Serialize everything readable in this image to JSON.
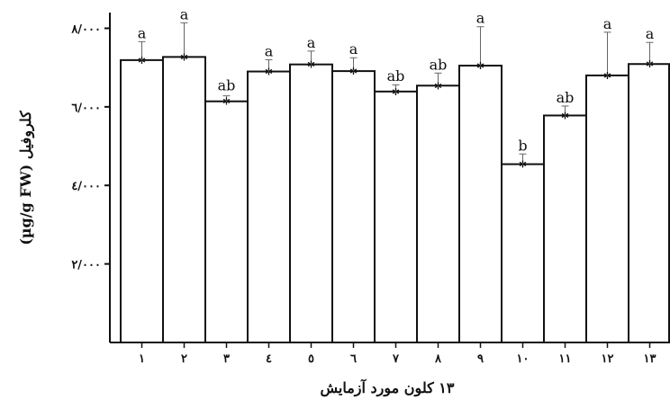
{
  "chart_data": {
    "type": "bar",
    "xlabel": "۱۳ کلون مورد آزمایش",
    "ylabel": "کلروفیل (µg/g FW)",
    "categories": [
      "۱",
      "۲",
      "۳",
      "٤",
      "٥",
      "٦",
      "۷",
      "۸",
      "۹",
      "۱۰",
      "۱۱",
      "۱۲",
      "۱۳"
    ],
    "values": [
      7190,
      7270,
      6140,
      6900,
      7080,
      6910,
      6390,
      6540,
      7050,
      4540,
      5780,
      6800,
      7090
    ],
    "error_upper": [
      7660,
      8140,
      6280,
      7200,
      7420,
      7250,
      6560,
      6860,
      8040,
      4800,
      6020,
      7900,
      7640
    ],
    "significance": [
      "a",
      "a",
      "ab",
      "a",
      "a",
      "a",
      "ab",
      "ab",
      "a",
      "b",
      "ab",
      "a",
      "a"
    ],
    "ylim": [
      0,
      8400
    ],
    "yticks": [
      2000,
      4000,
      6000,
      8000
    ],
    "ytick_labels": [
      "۲/۰۰۰",
      "٤/۰۰۰",
      "٦/۰۰۰",
      "۸/۰۰۰"
    ],
    "grid": false,
    "legend": "none"
  }
}
